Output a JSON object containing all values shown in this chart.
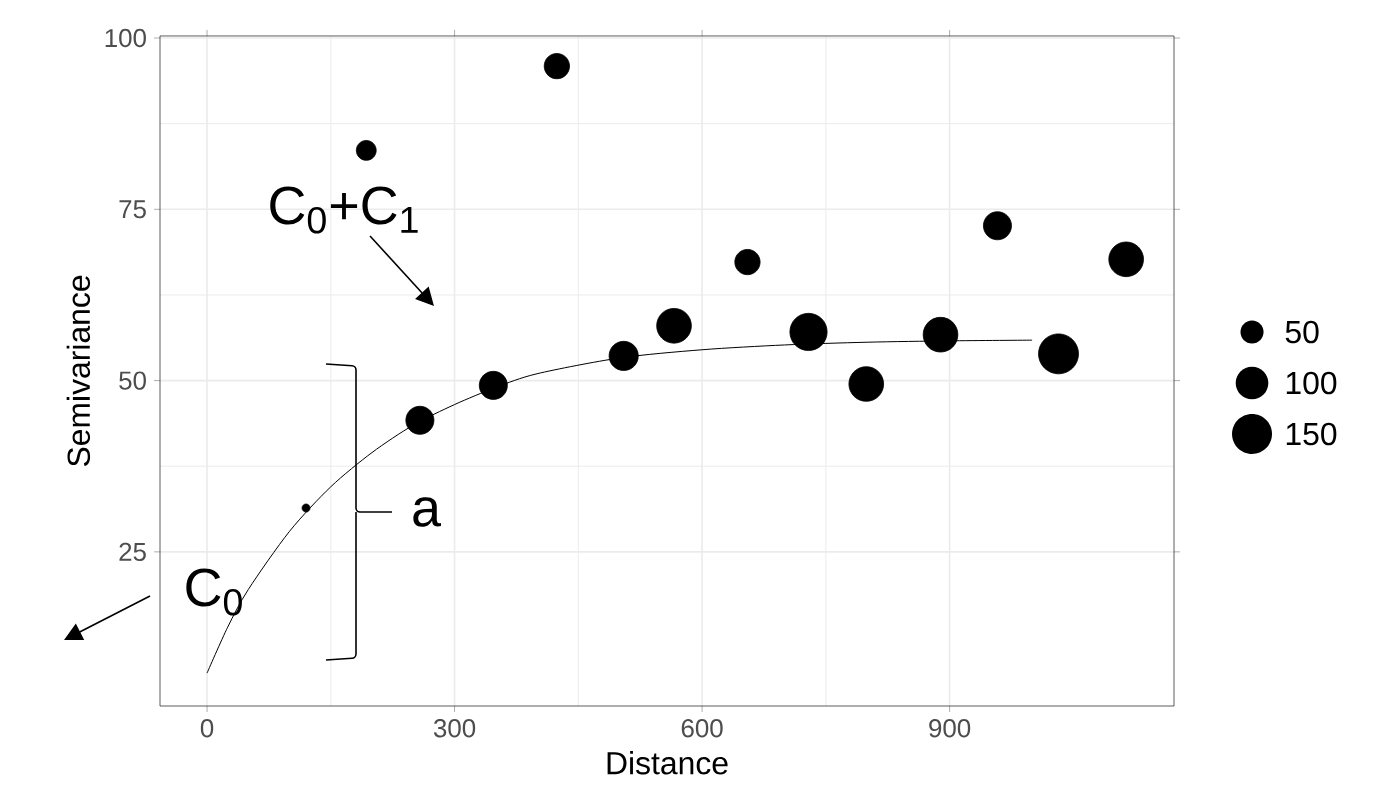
{
  "chart_data": {
    "type": "bubble",
    "xlabel": "Distance",
    "ylabel": "Semivariance",
    "xlim": [
      -57,
      1172
    ],
    "ylim": [
      2.5,
      100.3
    ],
    "xticks": [
      0,
      300,
      600,
      900
    ],
    "yticks": [
      25,
      50,
      75,
      100
    ],
    "grid": true,
    "size_legend": [
      50,
      100,
      150
    ],
    "series": [
      {
        "color": "#000000",
        "x": [
          120,
          193,
          424,
          258,
          347,
          505,
          566,
          655,
          729,
          799,
          889,
          958,
          1032,
          1114
        ],
        "values": [
          31.4,
          83.6,
          95.9,
          44.2,
          49.3,
          53.6,
          58.0,
          67.3,
          57.1,
          49.5,
          56.7,
          72.6,
          53.9,
          67.7
        ],
        "sizes": [
          6,
          37,
          60,
          74,
          74,
          80,
          113,
          60,
          130,
          113,
          113,
          74,
          150,
          113
        ]
      },
      {
        "type": "line",
        "color": "#000000",
        "x": [
          0,
          25,
          50,
          100,
          150,
          200,
          250,
          300,
          350,
          400,
          500,
          600,
          700,
          800,
          900,
          1000
        ],
        "values": [
          7.3,
          14,
          19.5,
          28,
          34.5,
          39.5,
          43.5,
          46.5,
          49,
          51,
          53.3,
          54.5,
          55.2,
          55.6,
          55.8,
          55.9
        ]
      }
    ],
    "annotations": [
      "C$_{0}$+C$_{1}$",
      "C$_{0}$",
      "a"
    ]
  }
}
